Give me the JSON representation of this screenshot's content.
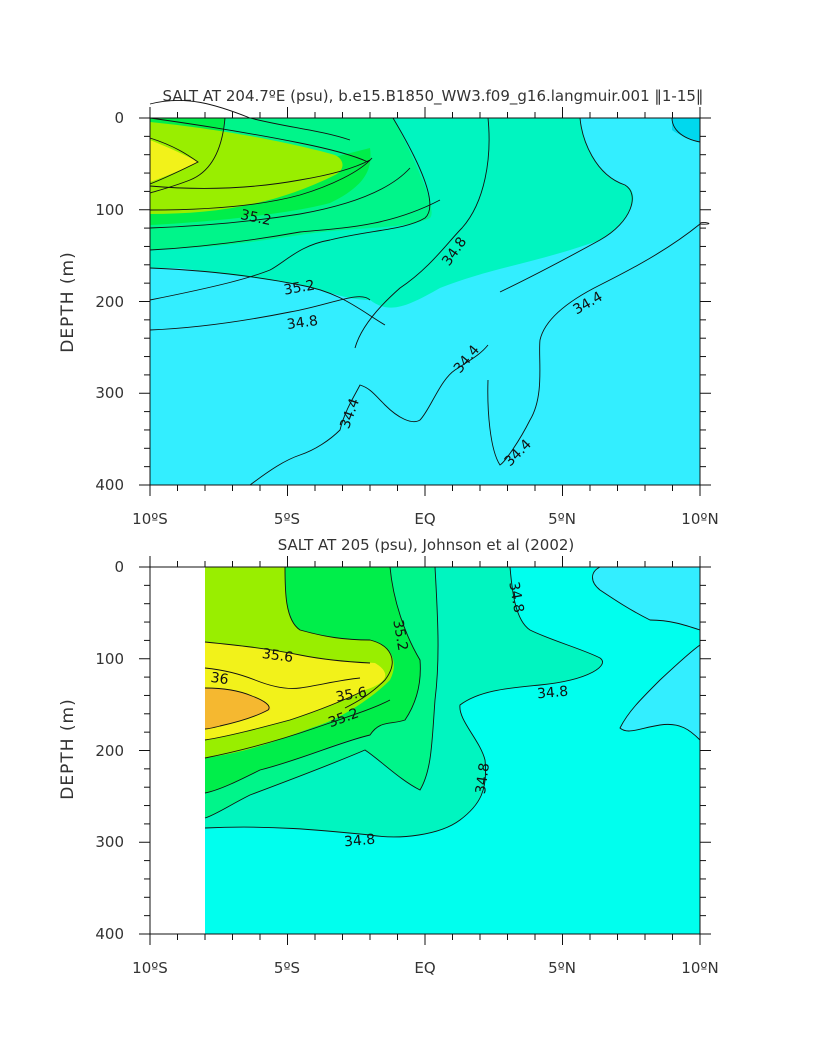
{
  "chart_data": [
    {
      "type": "contour",
      "title": "SALT AT 204.7ºE (psu), b.e15.B1850_WW3.f09_g16.langmuir.001 ‖1-15‖",
      "ylabel": "DEPTH (m)",
      "xlabel": "",
      "xlim": [
        -10,
        10
      ],
      "ylim": [
        0,
        400
      ],
      "y_inverted": true,
      "x_tick_labels": [
        "10ºS",
        "5ºS",
        "EQ",
        "5ºN",
        "10ºN"
      ],
      "x_tick_values": [
        -10,
        -5,
        0,
        5,
        10
      ],
      "y_tick_labels": [
        "0",
        "100",
        "200",
        "300",
        "400"
      ],
      "y_tick_values": [
        0,
        100,
        200,
        300,
        400
      ],
      "contour_levels": [
        34.2,
        34.4,
        34.6,
        34.8,
        35.0,
        35.2,
        35.4,
        35.6
      ],
      "contour_labels": [
        {
          "text": "35.2",
          "x": -6.8,
          "y": 107
        },
        {
          "text": "35.2",
          "x": -5.6,
          "y": 183
        },
        {
          "text": "34.8",
          "x": -5.5,
          "y": 222
        },
        {
          "text": "34.8",
          "x": 1.1,
          "y": 152
        },
        {
          "text": "34.4",
          "x": 6.4,
          "y": 200
        },
        {
          "text": "34.4",
          "x": 1.6,
          "y": 262
        },
        {
          "text": "34.4",
          "x": -2.7,
          "y": 318
        },
        {
          "text": "34.4",
          "x": 3.1,
          "y": 360
        }
      ]
    },
    {
      "type": "contour",
      "title": "SALT AT 205 (psu), Johnson et al (2002)",
      "ylabel": "DEPTH (m)",
      "xlabel": "",
      "xlim": [
        -10,
        10
      ],
      "ylim": [
        0,
        400
      ],
      "y_inverted": true,
      "data_xrange": [
        -8,
        10
      ],
      "x_tick_labels": [
        "10ºS",
        "5ºS",
        "EQ",
        "5ºN",
        "10ºN"
      ],
      "x_tick_values": [
        -10,
        -5,
        0,
        5,
        10
      ],
      "y_tick_labels": [
        "0",
        "100",
        "200",
        "300",
        "400"
      ],
      "y_tick_values": [
        0,
        100,
        200,
        300,
        400
      ],
      "contour_levels": [
        34.6,
        34.8,
        35.0,
        35.2,
        35.4,
        35.6,
        35.8,
        36.0
      ],
      "contour_labels": [
        {
          "text": "34.8",
          "x": 2.8,
          "y": 32
        },
        {
          "text": "35.2",
          "x": -1.5,
          "y": 72
        },
        {
          "text": "35.6",
          "x": -5.5,
          "y": 100
        },
        {
          "text": "36",
          "x": -7.0,
          "y": 122
        },
        {
          "text": "35.6",
          "x": -2.8,
          "y": 143
        },
        {
          "text": "35.2",
          "x": -3.7,
          "y": 168
        },
        {
          "text": "34.8",
          "x": 4.8,
          "y": 138
        },
        {
          "text": "34.8",
          "x": 2.3,
          "y": 230
        },
        {
          "text": "34.8",
          "x": -2.1,
          "y": 325
        }
      ]
    }
  ],
  "colors": {
    "c_3420": "#00d8ee",
    "c_3440": "#33eeff",
    "c_3460": "#00ffee",
    "c_3480": "#00f5c0",
    "c_3500": "#00f58a",
    "c_3520": "#00ee4a",
    "c_3540": "#99ee00",
    "c_3560": "#f2f21a",
    "c_3600": "#f5b830"
  }
}
